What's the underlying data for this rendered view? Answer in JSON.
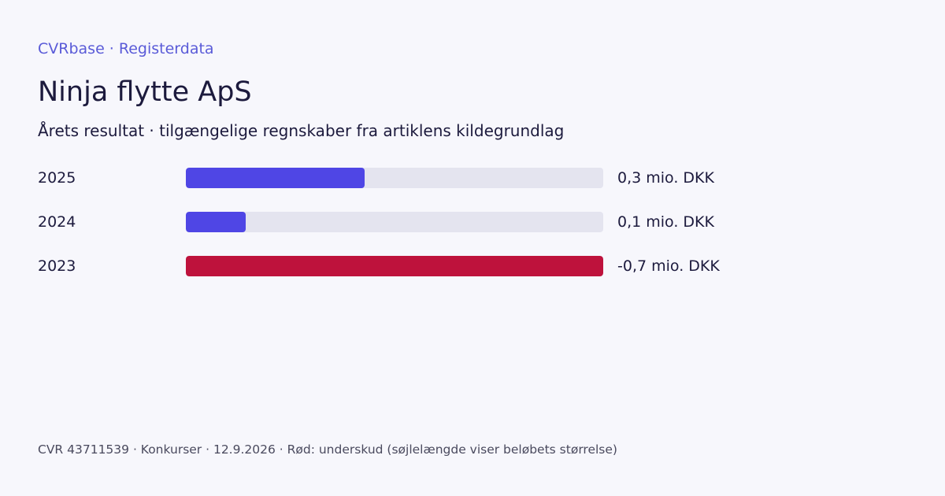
{
  "header": {
    "brand": "CVRbase · Registerdata",
    "title": "Ninja flytte ApS",
    "subtitle": "Årets resultat · tilgængelige regnskaber fra artiklens kildegrundlag"
  },
  "footer": {
    "text": "CVR 43711539 · Konkurser · 12.9.2026 · Rød: underskud (søjlelængde viser beløbets størrelse)"
  },
  "colors": {
    "positive": "#4f46e5",
    "negative": "#be123c",
    "track": "#e4e4ef"
  },
  "chart_data": {
    "type": "bar",
    "orientation": "horizontal",
    "unit": "mio. DKK",
    "categories": [
      "2025",
      "2024",
      "2023"
    ],
    "values": [
      0.3,
      0.1,
      -0.7
    ],
    "value_labels": [
      "0,3 mio. DKK",
      "0,1 mio. DKK",
      "-0,7 mio. DKK"
    ],
    "scale_max_abs": 0.7,
    "bar_length_encodes": "absolute value",
    "negative_color": "#be123c",
    "positive_color": "#4f46e5",
    "grid": false,
    "legend": "none"
  }
}
